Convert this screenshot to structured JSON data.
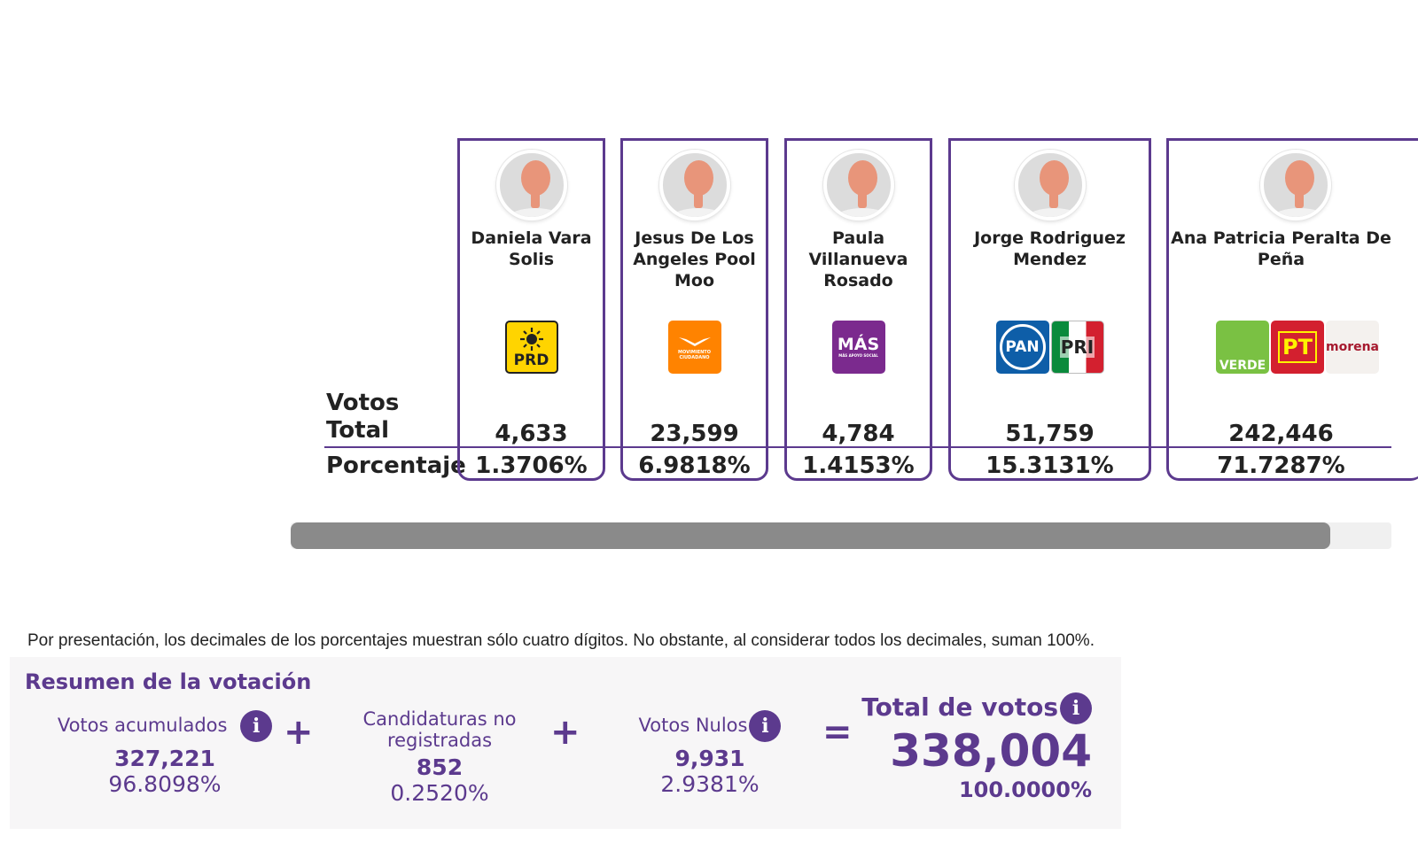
{
  "labels": {
    "votos_total": "Votos Total",
    "porcentaje": "Porcentaje"
  },
  "candidates": [
    {
      "name": "Daniela Vara Solis",
      "total": "4,633",
      "percent": "1.3706%",
      "parties": [
        "PRD"
      ]
    },
    {
      "name": "Jesus De Los Angeles Pool Moo",
      "total": "23,599",
      "percent": "6.9818%",
      "parties": [
        "MOVIMIENTO CIUDADANO"
      ]
    },
    {
      "name": "Paula Villanueva Rosado",
      "total": "4,784",
      "percent": "1.4153%",
      "parties": [
        "MÁS",
        "MÁS APOYO SOCIAL"
      ]
    },
    {
      "name": "Jorge Rodriguez Mendez",
      "total": "51,759",
      "percent": "15.3131%",
      "parties": [
        "PAN",
        "PRI"
      ]
    },
    {
      "name": "Ana Patricia Peralta De Peña",
      "total": "242,446",
      "percent": "71.7287%",
      "parties": [
        "VERDE",
        "PT",
        "morena"
      ]
    }
  ],
  "note": "Por presentación, los decimales de los porcentajes muestran sólo cuatro dígitos. No obstante, al considerar todos los decimales, suman 100%.",
  "summary": {
    "title": "Resumen de la votación",
    "acumulados": {
      "label": "Votos acumulados",
      "value": "327,221",
      "percent": "96.8098%"
    },
    "no_registradas": {
      "label": "Candidaturas no registradas",
      "value": "852",
      "percent": "0.2520%"
    },
    "nulos": {
      "label": "Votos Nulos",
      "value": "9,931",
      "percent": "2.9381%"
    },
    "total": {
      "label": "Total de votos",
      "value": "338,004",
      "percent": "100.0000%"
    },
    "operators": {
      "plus": "+",
      "equals": "="
    },
    "info_glyph": "i"
  },
  "colors": {
    "accent": "#5c3a8e",
    "scroll_thumb": "#8a8a8a"
  }
}
